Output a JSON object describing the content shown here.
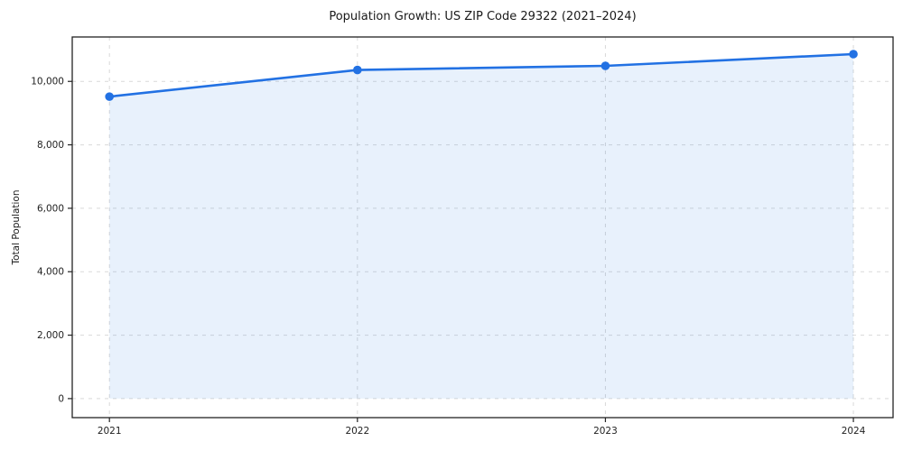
{
  "figure": {
    "background": "#ffffff"
  },
  "chart_data": {
    "type": "area",
    "title": "Population Growth: US ZIP Code 29322 (2021–2024)",
    "xlabel": "",
    "ylabel": "Total Population",
    "categories": [
      "2021",
      "2022",
      "2023",
      "2024"
    ],
    "x": [
      2021,
      2022,
      2023,
      2024
    ],
    "series": [
      {
        "name": "Total Population",
        "values": [
          9520,
          10360,
          10490,
          10860
        ]
      }
    ],
    "baseline": 0,
    "yticks": [
      0,
      2000,
      4000,
      6000,
      8000,
      10000
    ],
    "ytick_labels": [
      "0",
      "2,000",
      "4,000",
      "6,000",
      "8,000",
      "10,000"
    ],
    "xlim": [
      2020.85,
      2024.16
    ],
    "ylim": [
      -600,
      11400
    ],
    "grid": true,
    "grid_style": "dashed",
    "legend_position": "none",
    "line_color": "#2271e3",
    "fill_opacity": 0.1,
    "marker": "circle",
    "marker_size": 4.8,
    "grid_color": "#d9d9d9",
    "spine_color": "#222222",
    "text_color": "#1f1f1f"
  }
}
